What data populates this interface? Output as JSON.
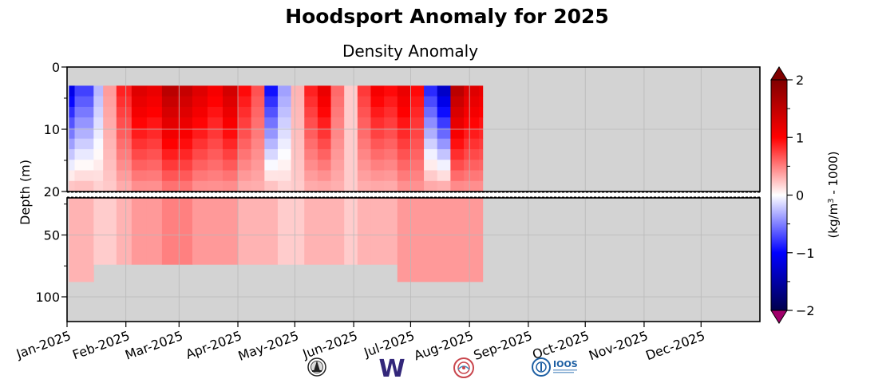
{
  "figure": {
    "title": "Hoodsport Anomaly for 2025"
  },
  "chart_data": {
    "type": "heatmap",
    "title": "Density Anomaly",
    "ylabel": "Depth (m)",
    "xlabel": "",
    "y_ticks_top": [
      "0",
      "10",
      "20"
    ],
    "y_ticks_bottom": [
      "50",
      "100"
    ],
    "x_ticks": [
      "Jan-2025",
      "Feb-2025",
      "Mar-2025",
      "Apr-2025",
      "May-2025",
      "Jun-2025",
      "Jul-2025",
      "Aug-2025",
      "Sep-2025",
      "Oct-2025",
      "Nov-2025",
      "Dec-2025"
    ],
    "depth_axis_top": [
      0,
      20
    ],
    "depth_axis_bottom": [
      20,
      120
    ],
    "data_start": "2025-01-01",
    "data_end": "2025-08-07",
    "grid": true,
    "no_data_color": "#d3d3d3",
    "colorbar": {
      "label_main": "(kg/m",
      "label_sup": "3",
      "label_tail": " - 1000)",
      "ticks": [
        "2",
        "1",
        "0",
        "−1",
        "−2"
      ],
      "range": [
        -2,
        2
      ],
      "colormap": "seismic",
      "extend": "both"
    },
    "columns": [
      {
        "date": "2025-01-02",
        "surface": -1.2,
        "deep": 0.3,
        "max_depth": 88
      },
      {
        "date": "2025-01-05",
        "surface": -0.8,
        "deep": 0.3,
        "max_depth": 88
      },
      {
        "date": "2025-01-15",
        "surface": -0.3,
        "deep": 0.2,
        "max_depth": 74
      },
      {
        "date": "2025-01-20",
        "surface": 0.4,
        "deep": 0.2,
        "max_depth": 74
      },
      {
        "date": "2025-01-27",
        "surface": 0.9,
        "deep": 0.3,
        "max_depth": 74
      },
      {
        "date": "2025-02-04",
        "surface": 1.3,
        "deep": 0.4,
        "max_depth": 74
      },
      {
        "date": "2025-02-12",
        "surface": 1.2,
        "deep": 0.4,
        "max_depth": 74
      },
      {
        "date": "2025-02-20",
        "surface": 1.6,
        "deep": 0.5,
        "max_depth": 74
      },
      {
        "date": "2025-02-28",
        "surface": 1.5,
        "deep": 0.5,
        "max_depth": 74
      },
      {
        "date": "2025-03-08",
        "surface": 1.3,
        "deep": 0.4,
        "max_depth": 74
      },
      {
        "date": "2025-03-16",
        "surface": 1.1,
        "deep": 0.4,
        "max_depth": 74
      },
      {
        "date": "2025-03-24",
        "surface": 1.4,
        "deep": 0.4,
        "max_depth": 74
      },
      {
        "date": "2025-04-01",
        "surface": 1.0,
        "deep": 0.3,
        "max_depth": 74
      },
      {
        "date": "2025-04-08",
        "surface": 0.7,
        "deep": 0.3,
        "max_depth": 74
      },
      {
        "date": "2025-04-15",
        "surface": -1.0,
        "deep": 0.3,
        "max_depth": 74
      },
      {
        "date": "2025-04-22",
        "surface": -0.4,
        "deep": 0.2,
        "max_depth": 74
      },
      {
        "date": "2025-04-29",
        "surface": 0.3,
        "deep": 0.2,
        "max_depth": 74
      },
      {
        "date": "2025-05-06",
        "surface": 0.9,
        "deep": 0.3,
        "max_depth": 74
      },
      {
        "date": "2025-05-13",
        "surface": 1.2,
        "deep": 0.3,
        "max_depth": 74
      },
      {
        "date": "2025-05-20",
        "surface": 0.6,
        "deep": 0.3,
        "max_depth": 74
      },
      {
        "date": "2025-05-27",
        "surface": 0.2,
        "deep": 0.2,
        "max_depth": 74
      },
      {
        "date": "2025-06-03",
        "surface": 0.8,
        "deep": 0.3,
        "max_depth": 74
      },
      {
        "date": "2025-06-10",
        "surface": 1.1,
        "deep": 0.3,
        "max_depth": 74
      },
      {
        "date": "2025-06-17",
        "surface": 1.0,
        "deep": 0.3,
        "max_depth": 74
      },
      {
        "date": "2025-06-24",
        "surface": 1.2,
        "deep": 0.4,
        "max_depth": 88
      },
      {
        "date": "2025-07-01",
        "surface": 1.0,
        "deep": 0.4,
        "max_depth": 88
      },
      {
        "date": "2025-07-08",
        "surface": -0.9,
        "deep": 0.4,
        "max_depth": 88
      },
      {
        "date": "2025-07-15",
        "surface": -1.4,
        "deep": 0.4,
        "max_depth": 88
      },
      {
        "date": "2025-07-22",
        "surface": 1.6,
        "deep": 0.4,
        "max_depth": 88
      },
      {
        "date": "2025-07-29",
        "surface": 1.3,
        "deep": 0.4,
        "max_depth": 88
      },
      {
        "date": "2025-08-06",
        "surface": 1.2,
        "deep": 0.4,
        "max_depth": 88
      }
    ]
  },
  "logos": [
    {
      "name": "orca-buoy-logo-icon"
    },
    {
      "name": "uw-w-logo-icon",
      "text": "W",
      "color": "#33277a"
    },
    {
      "name": "nanoos-logo-icon",
      "color": "#c9464d"
    },
    {
      "name": "ioos-logo-icon",
      "text": "IOOS",
      "color": "#1d5fa3"
    }
  ]
}
